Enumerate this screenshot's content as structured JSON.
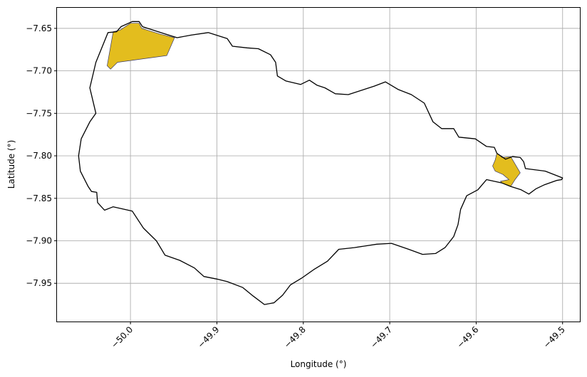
{
  "map": {
    "xlabel": "Longitude (°)",
    "ylabel": "Latitude (°)",
    "x_range": [
      -50.085,
      -49.48
    ],
    "y_range": [
      -7.995,
      -7.625
    ],
    "grid": true,
    "x_ticks": [
      {
        "value": -50.0,
        "label": "−50.0"
      },
      {
        "value": -49.9,
        "label": "−49.9"
      },
      {
        "value": -49.8,
        "label": "−49.8"
      },
      {
        "value": -49.7,
        "label": "−49.7"
      },
      {
        "value": -49.6,
        "label": "−49.6"
      },
      {
        "value": -49.5,
        "label": "−49.5"
      }
    ],
    "y_ticks": [
      {
        "value": -7.65,
        "label": "−7.65"
      },
      {
        "value": -7.7,
        "label": "−7.70"
      },
      {
        "value": -7.75,
        "label": "−7.75"
      },
      {
        "value": -7.8,
        "label": "−7.80"
      },
      {
        "value": -7.85,
        "label": "−7.85"
      },
      {
        "value": -7.9,
        "label": "−7.90"
      },
      {
        "value": -7.95,
        "label": "−7.95"
      }
    ],
    "colors": {
      "boundary": "#000000",
      "highlight_fill": "#e3bd1e",
      "highlight_edge": "#3b3b6b",
      "grid": "#b0b0b0"
    },
    "boundary": [
      [
        -50.047,
        -7.72
      ],
      [
        -50.04,
        -7.69
      ],
      [
        -50.026,
        -7.655
      ],
      [
        -50.016,
        -7.654
      ],
      [
        -50.011,
        -7.648
      ],
      [
        -49.998,
        -7.642
      ],
      [
        -49.99,
        -7.642
      ],
      [
        -49.986,
        -7.648
      ],
      [
        -49.965,
        -7.655
      ],
      [
        -49.946,
        -7.661
      ],
      [
        -49.93,
        -7.658
      ],
      [
        -49.91,
        -7.655
      ],
      [
        -49.888,
        -7.662
      ],
      [
        -49.882,
        -7.671
      ],
      [
        -49.865,
        -7.673
      ],
      [
        -49.852,
        -7.674
      ],
      [
        -49.838,
        -7.681
      ],
      [
        -49.832,
        -7.69
      ],
      [
        -49.83,
        -7.706
      ],
      [
        -49.82,
        -7.712
      ],
      [
        -49.803,
        -7.716
      ],
      [
        -49.793,
        -7.711
      ],
      [
        -49.784,
        -7.717
      ],
      [
        -49.775,
        -7.72
      ],
      [
        -49.763,
        -7.727
      ],
      [
        -49.748,
        -7.728
      ],
      [
        -49.73,
        -7.722
      ],
      [
        -49.718,
        -7.718
      ],
      [
        -49.705,
        -7.713
      ],
      [
        -49.69,
        -7.722
      ],
      [
        -49.675,
        -7.728
      ],
      [
        -49.66,
        -7.738
      ],
      [
        -49.65,
        -7.76
      ],
      [
        -49.64,
        -7.768
      ],
      [
        -49.626,
        -7.768
      ],
      [
        -49.62,
        -7.778
      ],
      [
        -49.601,
        -7.78
      ],
      [
        -49.588,
        -7.789
      ],
      [
        -49.579,
        -7.79
      ],
      [
        -49.576,
        -7.797
      ],
      [
        -49.566,
        -7.804
      ],
      [
        -49.558,
        -7.801
      ],
      [
        -49.549,
        -7.802
      ],
      [
        -49.545,
        -7.807
      ],
      [
        -49.543,
        -7.815
      ],
      [
        -49.52,
        -7.818
      ],
      [
        -49.5,
        -7.826
      ],
      [
        -49.501,
        -7.828
      ],
      [
        -49.507,
        -7.829
      ],
      [
        -49.521,
        -7.834
      ],
      [
        -49.531,
        -7.839
      ],
      [
        -49.539,
        -7.845
      ],
      [
        -49.548,
        -7.84
      ],
      [
        -49.56,
        -7.836
      ],
      [
        -49.57,
        -7.832
      ],
      [
        -49.588,
        -7.828
      ],
      [
        -49.598,
        -7.84
      ],
      [
        -49.611,
        -7.847
      ],
      [
        -49.618,
        -7.863
      ],
      [
        -49.621,
        -7.881
      ],
      [
        -49.626,
        -7.895
      ],
      [
        -49.636,
        -7.908
      ],
      [
        -49.647,
        -7.915
      ],
      [
        -49.662,
        -7.916
      ],
      [
        -49.678,
        -7.91
      ],
      [
        -49.698,
        -7.903
      ],
      [
        -49.715,
        -7.904
      ],
      [
        -49.741,
        -7.908
      ],
      [
        -49.759,
        -7.91
      ],
      [
        -49.772,
        -7.924
      ],
      [
        -49.788,
        -7.934
      ],
      [
        -49.802,
        -7.944
      ],
      [
        -49.815,
        -7.952
      ],
      [
        -49.824,
        -7.964
      ],
      [
        -49.834,
        -7.973
      ],
      [
        -49.845,
        -7.975
      ],
      [
        -49.858,
        -7.965
      ],
      [
        -49.87,
        -7.955
      ],
      [
        -49.888,
        -7.948
      ],
      [
        -49.9,
        -7.945
      ],
      [
        -49.915,
        -7.942
      ],
      [
        -49.926,
        -7.932
      ],
      [
        -49.943,
        -7.923
      ],
      [
        -49.96,
        -7.917
      ],
      [
        -49.97,
        -7.9
      ],
      [
        -49.985,
        -7.885
      ],
      [
        -49.998,
        -7.865
      ],
      [
        -50.02,
        -7.86
      ],
      [
        -50.03,
        -7.864
      ],
      [
        -50.038,
        -7.855
      ],
      [
        -50.039,
        -7.843
      ],
      [
        -50.045,
        -7.842
      ],
      [
        -50.049,
        -7.836
      ],
      [
        -50.058,
        -7.818
      ],
      [
        -50.06,
        -7.8
      ],
      [
        -50.057,
        -7.78
      ],
      [
        -50.047,
        -7.76
      ],
      [
        -50.04,
        -7.75
      ],
      [
        -50.047,
        -7.72
      ]
    ],
    "highlights": [
      [
        [
          -50.027,
          -7.694
        ],
        [
          -50.02,
          -7.654
        ],
        [
          -50.012,
          -7.652
        ],
        [
          -50.0,
          -7.644
        ],
        [
          -49.99,
          -7.644
        ],
        [
          -49.987,
          -7.65
        ],
        [
          -49.965,
          -7.657
        ],
        [
          -49.949,
          -7.661
        ],
        [
          -49.958,
          -7.682
        ],
        [
          -50.015,
          -7.69
        ],
        [
          -50.023,
          -7.698
        ],
        [
          -50.027,
          -7.694
        ]
      ],
      [
        [
          -49.576,
          -7.797
        ],
        [
          -49.57,
          -7.802
        ],
        [
          -49.56,
          -7.801
        ],
        [
          -49.549,
          -7.82
        ],
        [
          -49.555,
          -7.828
        ],
        [
          -49.56,
          -7.836
        ],
        [
          -49.57,
          -7.832
        ],
        [
          -49.572,
          -7.83
        ],
        [
          -49.562,
          -7.828
        ],
        [
          -49.569,
          -7.822
        ],
        [
          -49.578,
          -7.818
        ],
        [
          -49.581,
          -7.812
        ],
        [
          -49.578,
          -7.805
        ],
        [
          -49.576,
          -7.797
        ]
      ]
    ]
  }
}
